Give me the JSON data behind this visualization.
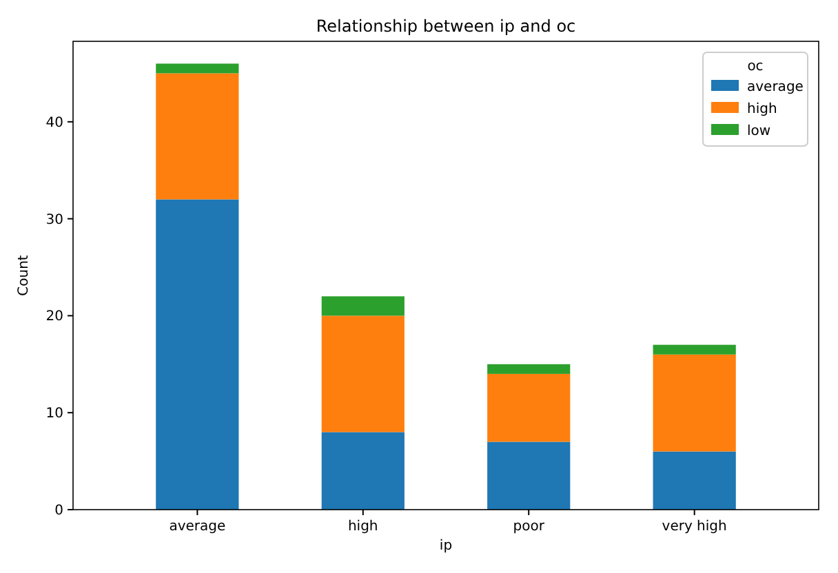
{
  "chart_data": {
    "type": "bar",
    "title": "Relationship between ip and oc",
    "xlabel": "ip",
    "ylabel": "Count",
    "legend_title": "oc",
    "categories": [
      "average",
      "high",
      "poor",
      "very high"
    ],
    "stacked": true,
    "series": [
      {
        "name": "average",
        "color": "#1f77b4",
        "values": [
          32,
          8,
          7,
          6
        ]
      },
      {
        "name": "high",
        "color": "#ff7f0e",
        "values": [
          13,
          12,
          7,
          10
        ]
      },
      {
        "name": "low",
        "color": "#2ca02c",
        "values": [
          1,
          2,
          1,
          1
        ]
      }
    ],
    "ylim": [
      0,
      48.3
    ],
    "yticks": [
      0,
      10,
      20,
      30,
      40
    ],
    "legend": "top right",
    "grid": false
  }
}
